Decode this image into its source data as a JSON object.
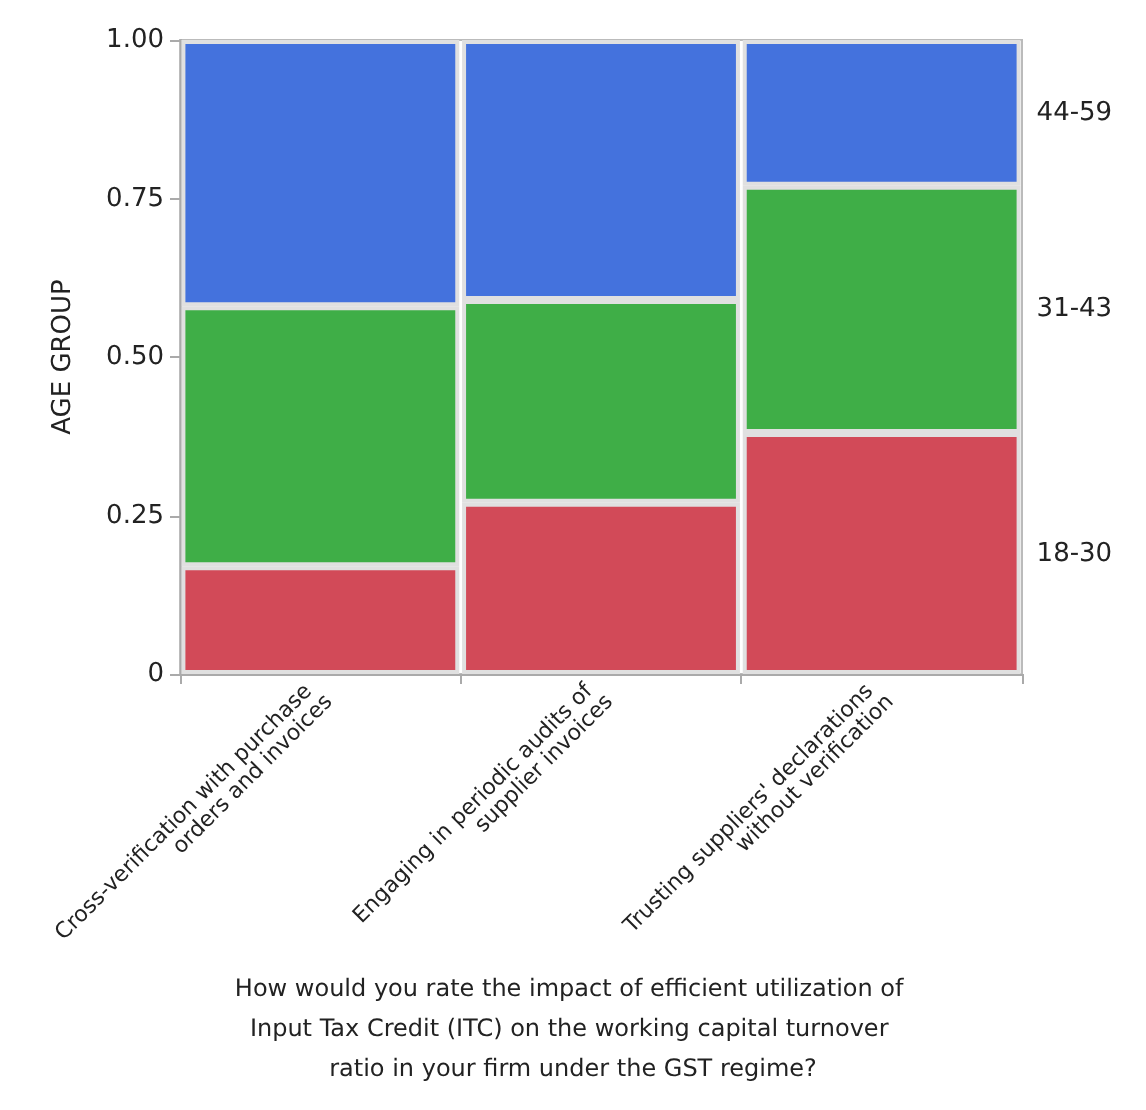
{
  "chart_data": {
    "type": "bar",
    "stacked": true,
    "xlabel": "How would you rate the impact of efficient utilization of Input Tax Credit (ITC) on the working capital turnover ratio in your firm under the GST regime?",
    "ylabel": "AGE GROUP",
    "categories": [
      "Cross-verification with purchase orders and invoices",
      "Engaging in periodic audits of supplier invoices",
      "Trusting suppliers' declarations without verification"
    ],
    "series": [
      {
        "name": "18-30",
        "color": "#d24a58",
        "values": [
          0.17,
          0.27,
          0.38
        ]
      },
      {
        "name": "31-43",
        "color": "#3fae47",
        "values": [
          0.41,
          0.32,
          0.39
        ]
      },
      {
        "name": "44-59",
        "color": "#4472dd",
        "values": [
          0.42,
          0.41,
          0.23
        ]
      }
    ],
    "ylim": [
      0,
      1
    ],
    "yticks": [
      0,
      {
        "value": 0.25,
        "label": "0.25"
      },
      {
        "value": 0.5,
        "label": "0.50"
      },
      {
        "value": 0.75,
        "label": "0.75"
      },
      {
        "value": 1,
        "label": "1.00"
      }
    ],
    "grid": false,
    "legend": false
  }
}
